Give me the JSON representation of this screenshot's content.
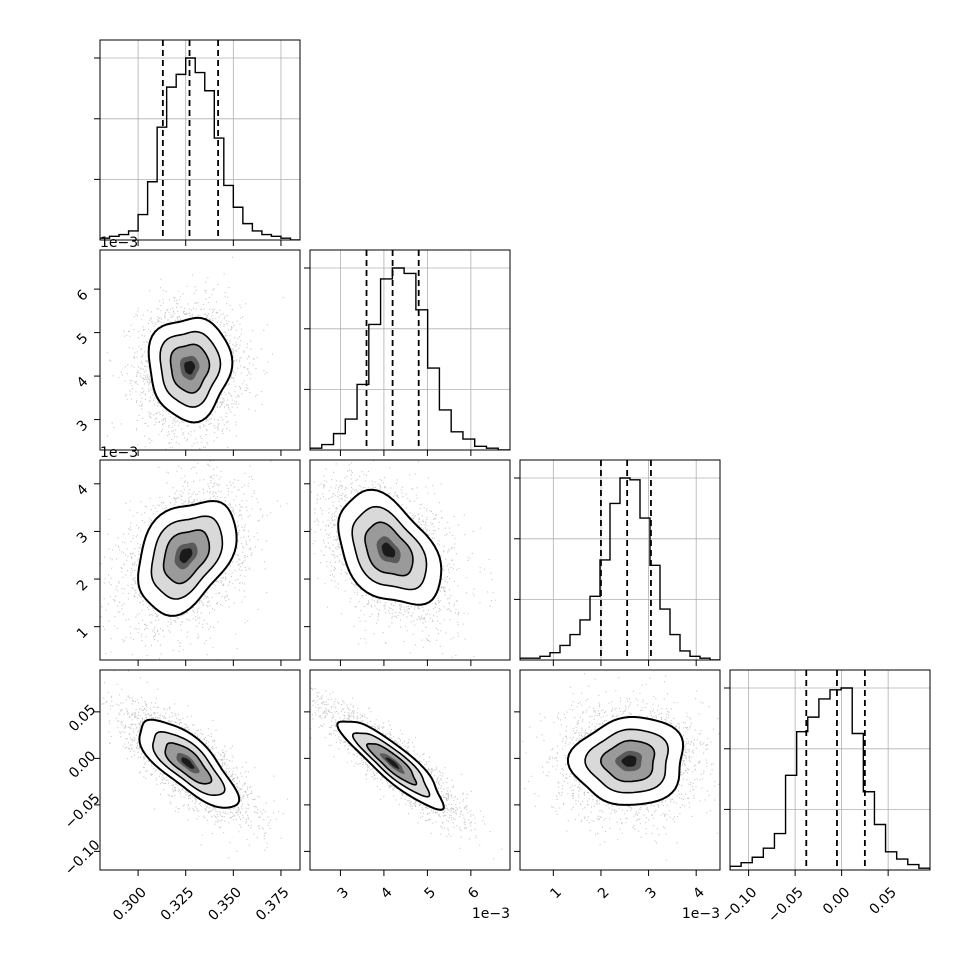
{
  "chart_data": {
    "type": "corner",
    "grid": true,
    "colors": {
      "hist": "#000000",
      "contour": "#000000",
      "grid": "#b0b0b0",
      "scatter": "#9a9a9a"
    },
    "parameters": [
      {
        "range": [
          0.28,
          0.385
        ],
        "ticks": [
          0.3,
          0.325,
          0.35,
          0.375
        ],
        "tick_labels": [
          "0.300",
          "0.325",
          "0.350",
          "0.375"
        ],
        "offset": "",
        "quantiles": [
          0.313,
          0.327,
          0.342
        ],
        "hist": [
          1,
          2,
          3,
          5,
          14,
          32,
          62,
          84,
          91,
          100,
          92,
          82,
          56,
          30,
          18,
          9,
          5,
          3,
          2,
          1,
          0
        ]
      },
      {
        "range": [
          2.3,
          6.9
        ],
        "ticks": [
          3,
          4,
          5,
          6
        ],
        "tick_labels": [
          "3",
          "4",
          "5",
          "6"
        ],
        "offset": "1e−3",
        "quantiles": [
          3.6,
          4.2,
          4.8
        ],
        "hist": [
          1,
          3,
          9,
          17,
          36,
          69,
          94,
          100,
          97,
          77,
          45,
          22,
          10,
          6,
          2,
          1,
          0
        ]
      },
      {
        "range": [
          0.3,
          4.5
        ],
        "ticks": [
          1,
          2,
          3,
          4
        ],
        "tick_labels": [
          "1",
          "2",
          "3",
          "4"
        ],
        "offset": "1e−3",
        "quantiles": [
          2.0,
          2.55,
          3.05
        ],
        "hist": [
          1,
          1,
          2,
          4,
          8,
          14,
          22,
          35,
          55,
          86,
          100,
          99,
          78,
          52,
          28,
          14,
          5,
          2,
          1,
          0
        ]
      },
      {
        "range": [
          -0.12,
          0.095
        ],
        "ticks": [
          -0.1,
          -0.05,
          0.0,
          0.05
        ],
        "tick_labels": [
          "−0.10",
          "−0.05",
          "0.00",
          "0.05"
        ],
        "offset": "",
        "quantiles": [
          -0.038,
          -0.005,
          0.025
        ],
        "hist": [
          2,
          4,
          7,
          12,
          20,
          52,
          76,
          84,
          94,
          99,
          100,
          75,
          43,
          25,
          10,
          6,
          3,
          1
        ]
      }
    ],
    "pairs": [
      {
        "row": 1,
        "col": 0,
        "center": [
          0.327,
          4.2
        ],
        "spread": [
          0.01,
          0.55
        ],
        "corr": 0.0
      },
      {
        "row": 2,
        "col": 0,
        "center": [
          0.325,
          2.5
        ],
        "spread": [
          0.012,
          0.55
        ],
        "corr": 0.35
      },
      {
        "row": 2,
        "col": 1,
        "center": [
          4.1,
          2.6
        ],
        "spread": [
          0.55,
          0.55
        ],
        "corr": -0.4
      },
      {
        "row": 3,
        "col": 0,
        "center": [
          0.326,
          -0.005
        ],
        "spread": [
          0.012,
          0.022
        ],
        "corr": -0.75
      },
      {
        "row": 3,
        "col": 1,
        "center": [
          4.2,
          -0.005
        ],
        "spread": [
          0.55,
          0.022
        ],
        "corr": -0.88
      },
      {
        "row": 3,
        "col": 2,
        "center": [
          2.6,
          -0.003
        ],
        "spread": [
          0.55,
          0.022
        ],
        "corr": 0.05
      }
    ]
  }
}
